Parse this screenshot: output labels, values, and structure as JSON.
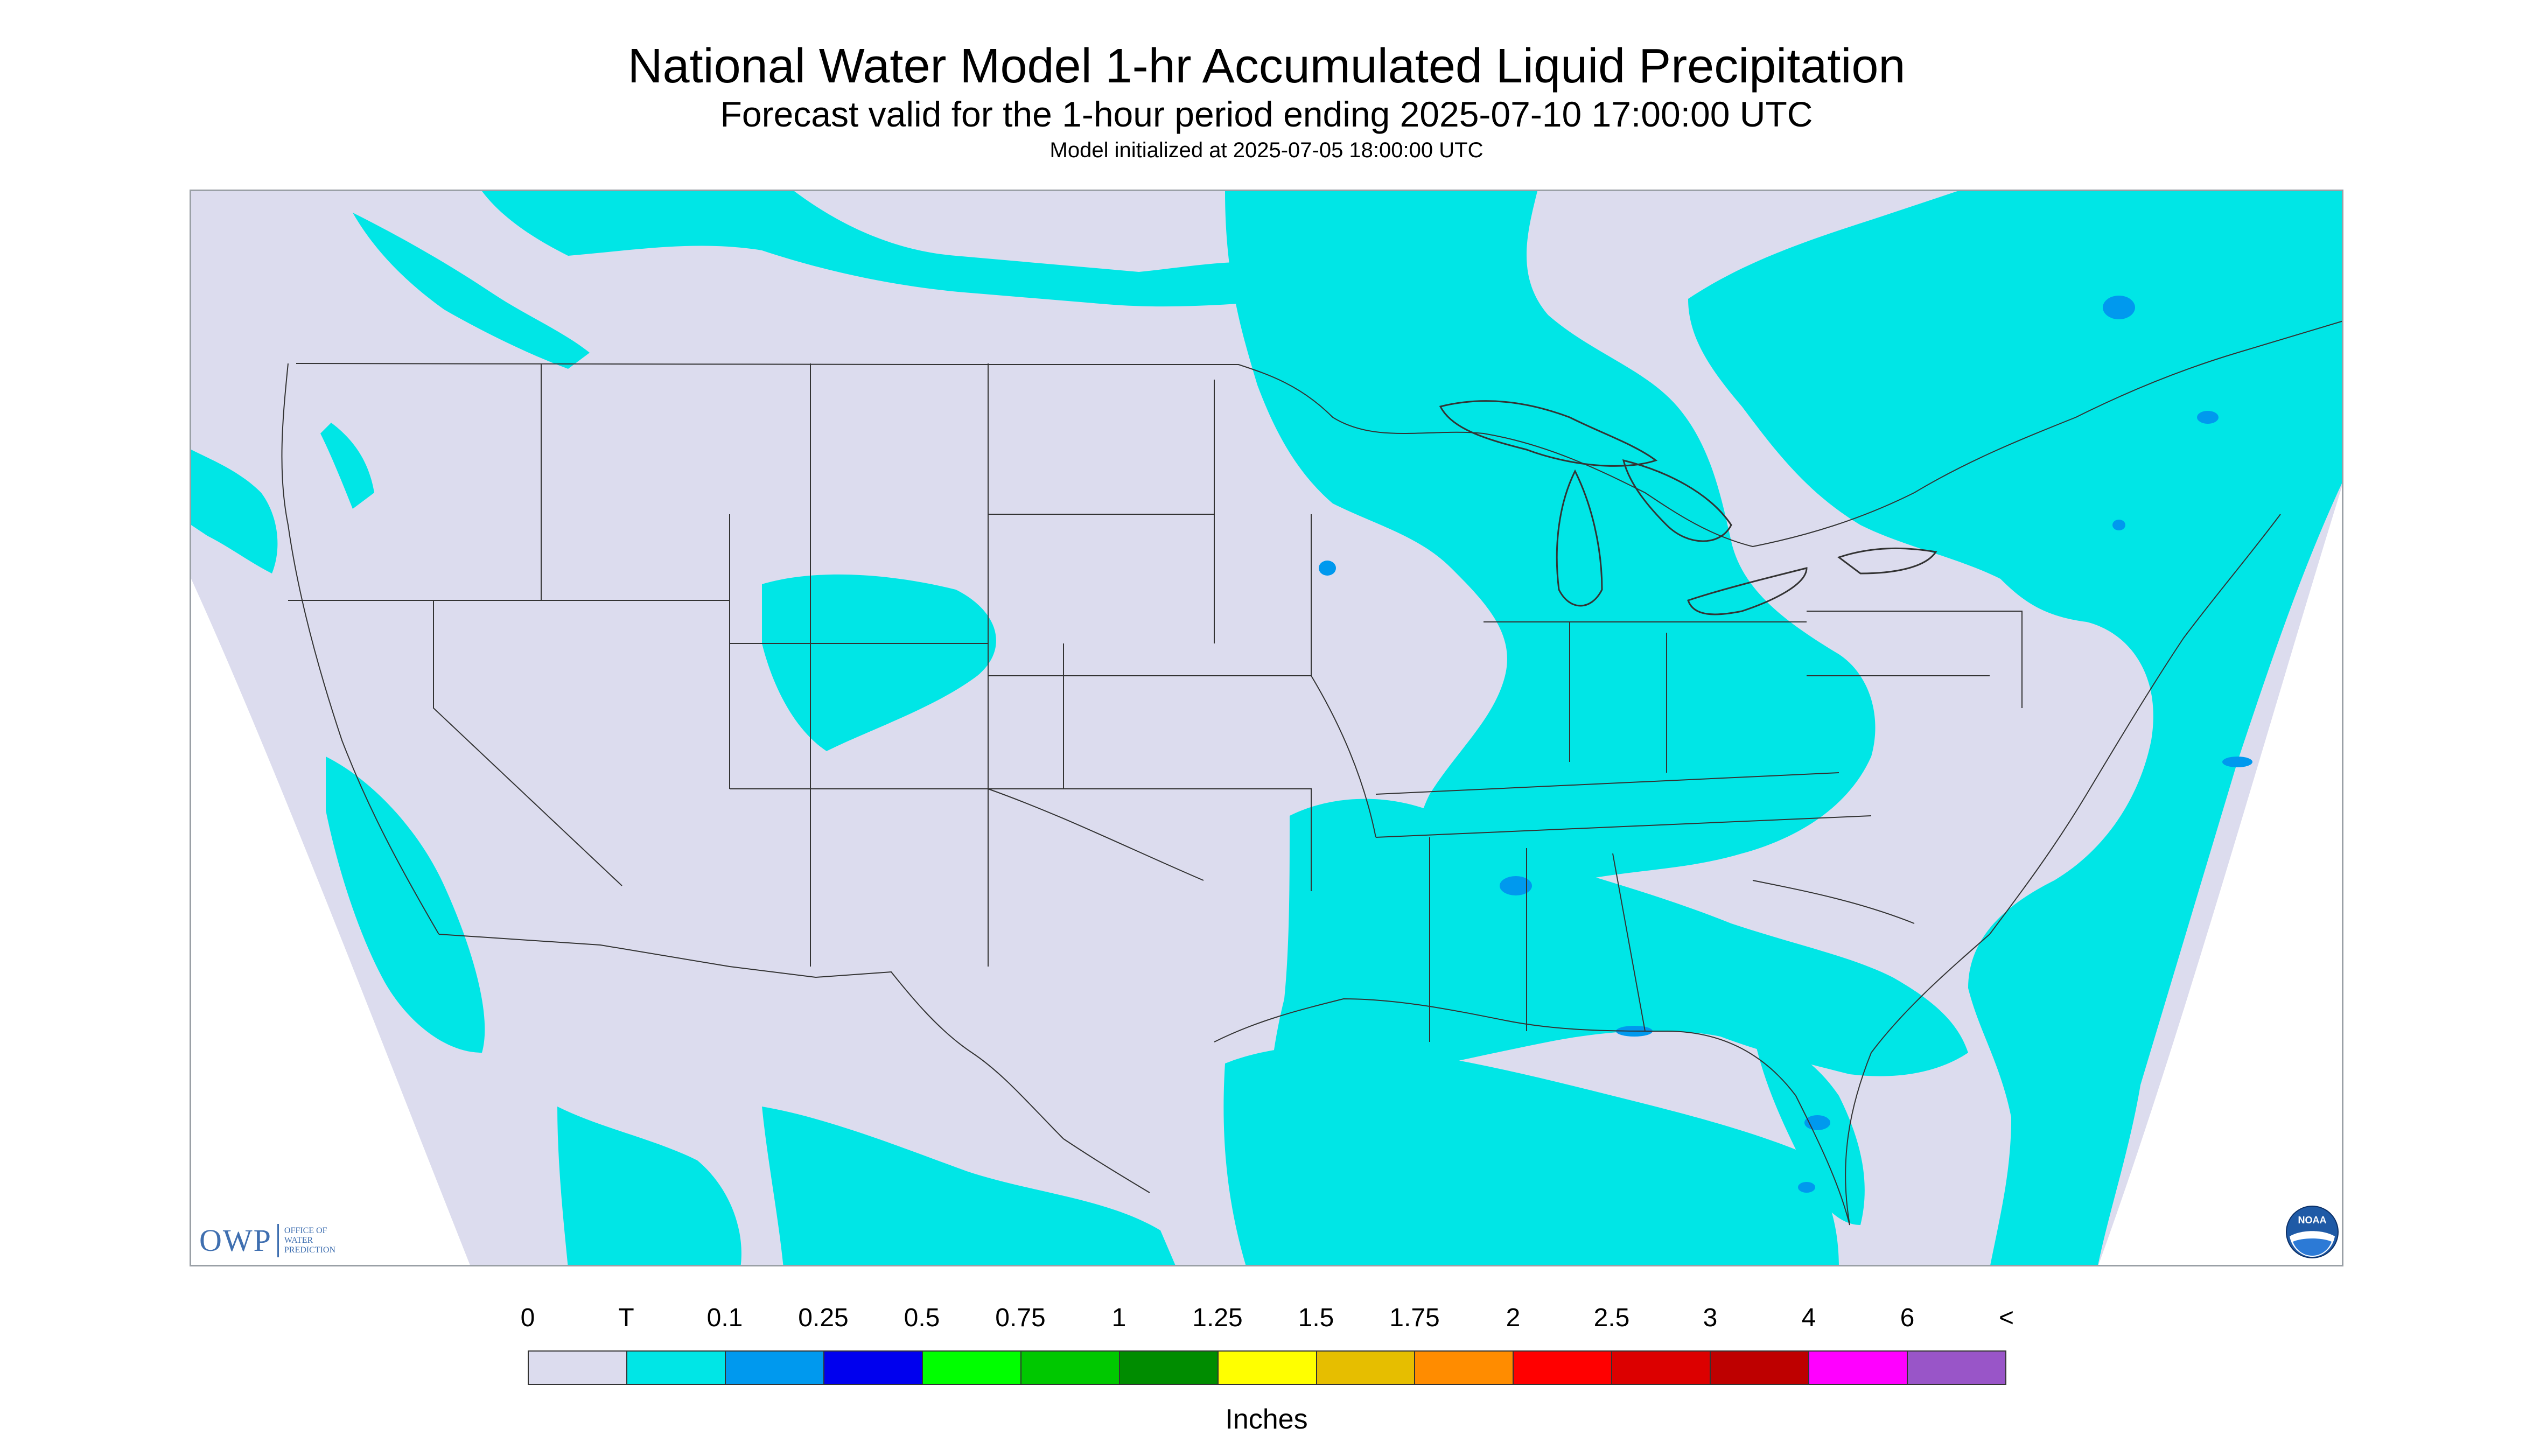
{
  "header": {
    "title": "National Water Model 1-hr Accumulated Liquid Precipitation",
    "subtitle": "Forecast valid for the 1-hour period ending 2025-07-10 17:00:00 UTC",
    "init": "Model initialized at 2025-07-05 18:00:00 UTC"
  },
  "logos": {
    "owp_mark": "OWP",
    "owp_lines": [
      "OFFICE OF",
      "WATER",
      "PREDICTION"
    ],
    "noaa_label": "NOAA"
  },
  "legend": {
    "ticks": [
      "0",
      "T",
      "0.1",
      "0.25",
      "0.5",
      "0.75",
      "1",
      "1.25",
      "1.5",
      "1.75",
      "2",
      "2.5",
      "3",
      "4",
      "6",
      "<"
    ],
    "colors": [
      "#dcdcee",
      "#00e6e6",
      "#0099ee",
      "#0000ee",
      "#00ff00",
      "#00c800",
      "#008c00",
      "#ffff00",
      "#e6be00",
      "#ff8c00",
      "#ff0000",
      "#dc0000",
      "#be0000",
      "#ff00ff",
      "#9955c8"
    ],
    "units": "Inches"
  },
  "map": {
    "background_color": "#dcdcee",
    "trace_color": "#00e6e6",
    "light_color": "#0099ee",
    "outside_color": "#ffffff",
    "boundary_color": "#333333"
  }
}
